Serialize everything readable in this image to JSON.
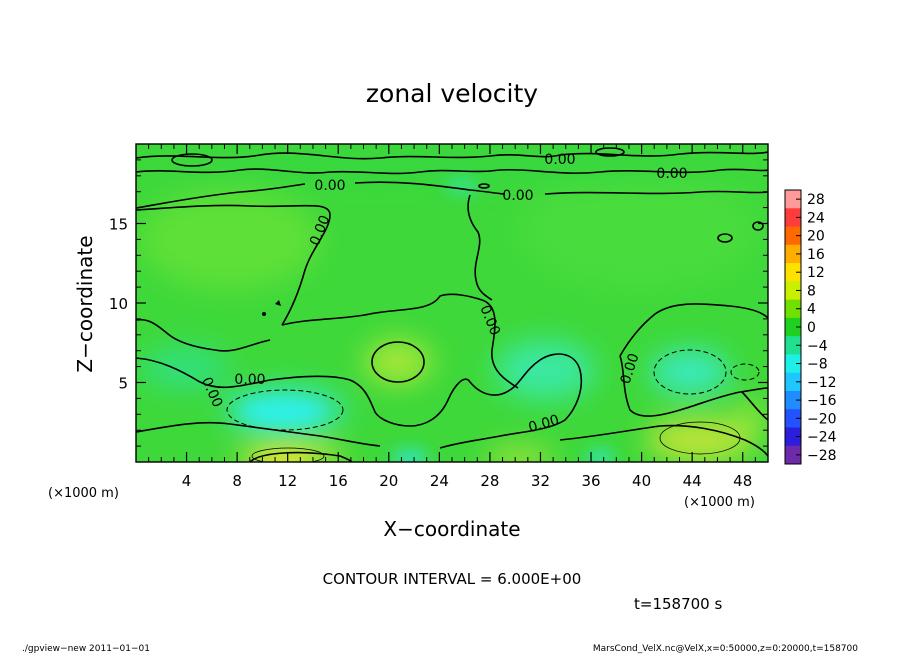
{
  "chart_data": {
    "type": "heatmap",
    "title": "zonal velocity",
    "xlabel": "X−coordinate",
    "ylabel": "Z−coordinate",
    "x_unit_left": "(×1000 m)",
    "x_unit_right": "(×1000 m)",
    "xlim": [
      0,
      50
    ],
    "ylim": [
      0,
      20
    ],
    "x_ticks": [
      4,
      8,
      12,
      16,
      20,
      24,
      28,
      32,
      36,
      40,
      44,
      48
    ],
    "x_tick_labels": [
      "4",
      "8",
      "12",
      "16",
      "20",
      "24",
      "28",
      "32",
      "36",
      "40",
      "44",
      "48"
    ],
    "y_ticks": [
      5,
      10,
      15
    ],
    "y_tick_labels": [
      "5",
      "10",
      "15"
    ],
    "colorbar": {
      "values": [
        28,
        24,
        20,
        16,
        12,
        8,
        4,
        0,
        -4,
        -8,
        -12,
        -16,
        -20,
        -24,
        -28
      ],
      "labels": [
        "28",
        "24",
        "20",
        "16",
        "12",
        "8",
        "4",
        "0",
        "−4",
        "−8",
        "−12",
        "−16",
        "−20",
        "−24",
        "−28"
      ],
      "colors": [
        "#ff9a9a",
        "#ff3c3c",
        "#ff6a00",
        "#ffae00",
        "#ffe100",
        "#c8f000",
        "#6fe000",
        "#1fd020",
        "#1ee090",
        "#1ef0e8",
        "#1ec8ff",
        "#1f8cff",
        "#2352ff",
        "#2b1edc",
        "#6e2aa8"
      ]
    },
    "contour_label": "0.00",
    "contour_interval_text": "CONTOUR INTERVAL = 6.000E+00",
    "time_text": "t=158700 s",
    "footer_left": "./gpview−new  2011−01−01",
    "footer_right": "MarsCond_VelX.nc@VelX,x=0:50000,z=0:20000,t=158700"
  }
}
